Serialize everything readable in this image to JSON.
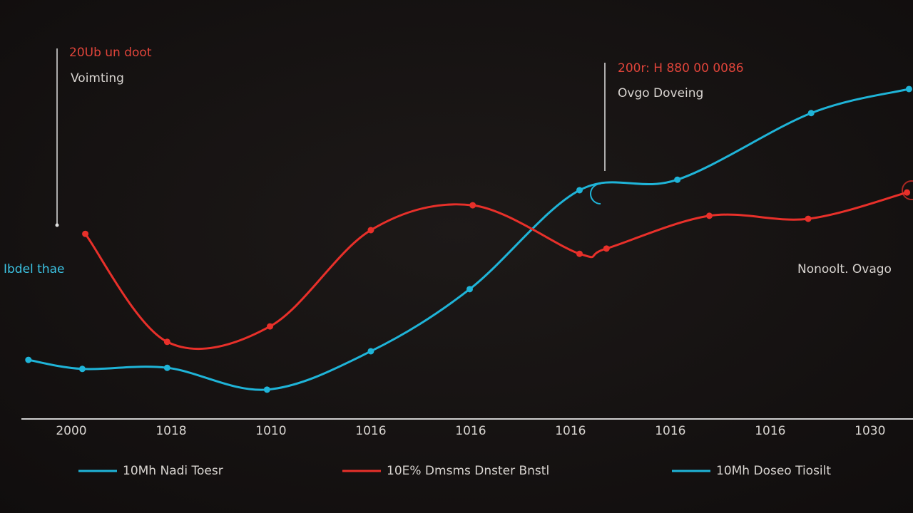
{
  "chart_data": {
    "type": "line",
    "xlim": [
      -0.5,
      8.43
    ],
    "ylim": [
      0,
      100
    ],
    "xticks": [
      {
        "value": 0,
        "label": "2000"
      },
      {
        "value": 1,
        "label": "1018"
      },
      {
        "value": 2,
        "label": "1010"
      },
      {
        "value": 3,
        "label": "1016"
      },
      {
        "value": 4,
        "label": "1016"
      },
      {
        "value": 5,
        "label": "1016"
      },
      {
        "value": 6,
        "label": "1016"
      },
      {
        "value": 7,
        "label": "1016"
      },
      {
        "value": 8,
        "label": "1030"
      }
    ],
    "series": [
      {
        "color": "#1fb4d8",
        "x": [
          -0.43,
          0.11,
          0.96,
          1.96,
          3,
          3.99,
          5.09,
          6.07,
          7.41,
          8.39
        ],
        "values": [
          15.7,
          13.3,
          13.6,
          7.8,
          18,
          34.5,
          60.8,
          63.6,
          81.3,
          87.7
        ]
      },
      {
        "color": "#e8302a",
        "x": [
          0.14,
          0.96,
          1.99,
          3,
          4.02,
          5.09,
          5.36,
          6.39,
          7.38,
          8.37
        ],
        "values": [
          49.2,
          20.5,
          24.6,
          50.2,
          56.8,
          43.9,
          45.3,
          54,
          53.2,
          60.2
        ]
      }
    ],
    "legend": [
      {
        "label": "10Mh Nadi Toesr",
        "color": "#1fb4d8"
      },
      {
        "label": "10E% Dmsms Dnster Bnstl",
        "color": "#e8302a"
      },
      {
        "label": "10Mh Doseo Tiosilt",
        "color": "#1fb4d8"
      }
    ],
    "annotations": [
      {
        "title": "20Ub un doot",
        "text": "Voimting"
      },
      {
        "title": "200r: H 880 00 0086",
        "text": "Ovgo Doveing"
      }
    ],
    "side_labels": [
      "Ibdel thae",
      "Nonoolt. Ovago"
    ]
  }
}
